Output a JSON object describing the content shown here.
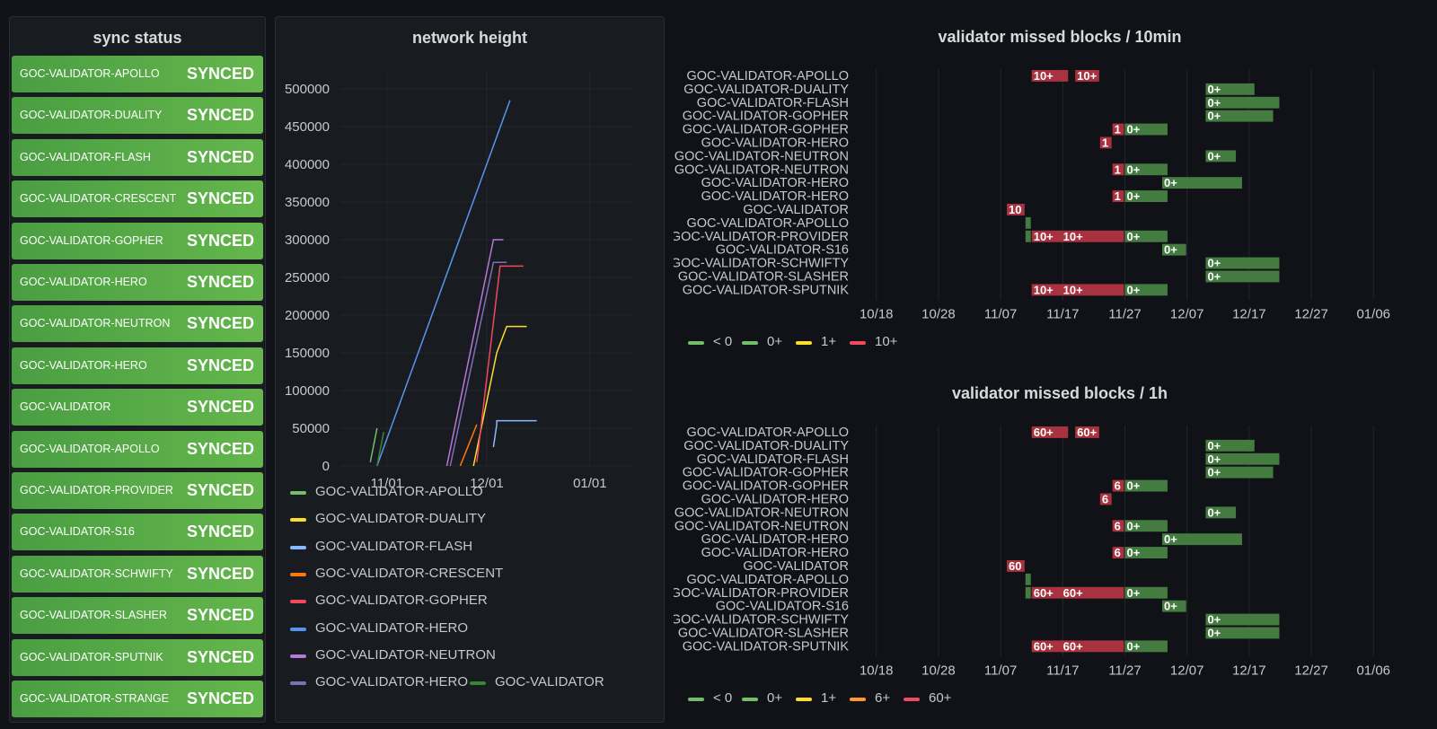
{
  "sync_panel": {
    "title": "sync status",
    "rows": [
      {
        "name": "GOC-VALIDATOR-APOLLO",
        "status": "SYNCED"
      },
      {
        "name": "GOC-VALIDATOR-DUALITY",
        "status": "SYNCED"
      },
      {
        "name": "GOC-VALIDATOR-FLASH",
        "status": "SYNCED"
      },
      {
        "name": "GOC-VALIDATOR-CRESCENT",
        "status": "SYNCED"
      },
      {
        "name": "GOC-VALIDATOR-GOPHER",
        "status": "SYNCED"
      },
      {
        "name": "GOC-VALIDATOR-HERO",
        "status": "SYNCED"
      },
      {
        "name": "GOC-VALIDATOR-NEUTRON",
        "status": "SYNCED"
      },
      {
        "name": "GOC-VALIDATOR-HERO",
        "status": "SYNCED"
      },
      {
        "name": "GOC-VALIDATOR",
        "status": "SYNCED"
      },
      {
        "name": "GOC-VALIDATOR-APOLLO",
        "status": "SYNCED"
      },
      {
        "name": "GOC-VALIDATOR-PROVIDER",
        "status": "SYNCED"
      },
      {
        "name": "GOC-VALIDATOR-S16",
        "status": "SYNCED"
      },
      {
        "name": "GOC-VALIDATOR-SCHWIFTY",
        "status": "SYNCED"
      },
      {
        "name": "GOC-VALIDATOR-SLASHER",
        "status": "SYNCED"
      },
      {
        "name": "GOC-VALIDATOR-SPUTNIK",
        "status": "SYNCED"
      },
      {
        "name": "GOC-VALIDATOR-STRANGE",
        "status": "SYNCED"
      }
    ]
  },
  "colors": {
    "synced": "#56a64b",
    "green": "#56a64b",
    "red": "#c4314b",
    "yellow": "#fade2a",
    "orange": "#ff780a",
    "blue": "#5794f2",
    "lightblue": "#8ab8ff",
    "purple": "#b877d9"
  },
  "chart_data": [
    {
      "type": "line",
      "title": "network height",
      "xlabel": "",
      "ylabel": "",
      "x_ticks": [
        "11/01",
        "12/01",
        "01/01"
      ],
      "y_ticks": [
        0,
        50000,
        100000,
        150000,
        200000,
        250000,
        300000,
        350000,
        400000,
        450000,
        500000
      ],
      "ylim": [
        0,
        500000
      ],
      "xlim": [
        "2022-10-18",
        "2023-01-14"
      ],
      "legend": "bottom",
      "series": [
        {
          "name": "GOC-VALIDATOR-APOLLO",
          "color": "#73bf69",
          "points": [
            [
              "2022-10-27",
              5000
            ],
            [
              "2022-10-29",
              50000
            ]
          ]
        },
        {
          "name": "GOC-VALIDATOR-DUALITY",
          "color": "#fade2a",
          "points": [
            [
              "2022-11-27",
              0
            ],
            [
              "2022-12-04",
              150000
            ],
            [
              "2022-12-07",
              185000
            ],
            [
              "2022-12-13",
              185000
            ]
          ]
        },
        {
          "name": "GOC-VALIDATOR-FLASH",
          "color": "#8ab8ff",
          "points": [
            [
              "2022-12-03",
              25000
            ],
            [
              "2022-12-04",
              55000
            ],
            [
              "2022-12-04",
              60000
            ],
            [
              "2022-12-16",
              60000
            ]
          ]
        },
        {
          "name": "GOC-VALIDATOR-CRESCENT",
          "color": "#ff780a",
          "points": [
            [
              "2022-11-23",
              0
            ],
            [
              "2022-11-28",
              55000
            ]
          ]
        },
        {
          "name": "GOC-VALIDATOR-GOPHER",
          "color": "#f2495c",
          "points": [
            [
              "2022-11-28",
              5000
            ],
            [
              "2022-12-05",
              265000
            ],
            [
              "2022-12-12",
              265000
            ]
          ]
        },
        {
          "name": "GOC-VALIDATOR-HERO",
          "color": "#5794f2",
          "points": [
            [
              "2022-10-29",
              0
            ],
            [
              "2022-12-08",
              485000
            ]
          ]
        },
        {
          "name": "GOC-VALIDATOR-NEUTRON",
          "color": "#b877d9",
          "points": [
            [
              "2022-11-19",
              0
            ],
            [
              "2022-12-03",
              300000
            ],
            [
              "2022-12-06",
              300000
            ]
          ]
        },
        {
          "name": "GOC-VALIDATOR-HERO",
          "color": "#806eb7",
          "points": [
            [
              "2022-11-20",
              0
            ],
            [
              "2022-12-03",
              270000
            ],
            [
              "2022-12-07",
              270000
            ]
          ]
        },
        {
          "name": "GOC-VALIDATOR",
          "color": "#37872d",
          "points": [
            [
              "2022-10-29",
              0
            ],
            [
              "2022-10-31",
              45000
            ]
          ]
        }
      ]
    },
    {
      "type": "bar",
      "title": "validator missed blocks / 10min",
      "xlabel": "",
      "ylabel": "",
      "x_ticks": [
        "10/18",
        "10/28",
        "11/07",
        "11/17",
        "11/27",
        "12/07",
        "12/17",
        "12/27",
        "01/06"
      ],
      "xlim": [
        "2022-10-15",
        "2023-01-09"
      ],
      "legend": "bottom-left",
      "legend_entries": [
        {
          "label": "< 0",
          "color": "#73bf69"
        },
        {
          "label": "0+",
          "color": "#73bf69"
        },
        {
          "label": "1+",
          "color": "#fade2a"
        },
        {
          "label": "10+",
          "color": "#f2495c"
        }
      ],
      "rows": [
        {
          "name": "GOC-VALIDATOR-APOLLO",
          "segments": [
            [
              "2022-11-12",
              "2022-11-18",
              "10+",
              "red"
            ],
            [
              "2022-11-19",
              "2022-11-23",
              "10+",
              "red"
            ]
          ]
        },
        {
          "name": "GOC-VALIDATOR-DUALITY",
          "segments": [
            [
              "2022-12-10",
              "2022-12-18",
              "0+",
              "green"
            ]
          ]
        },
        {
          "name": "GOC-VALIDATOR-FLASH",
          "segments": [
            [
              "2022-12-10",
              "2022-12-22",
              "0+",
              "green"
            ]
          ]
        },
        {
          "name": "GOC-VALIDATOR-GOPHER",
          "segments": [
            [
              "2022-12-10",
              "2022-12-21",
              "0+",
              "green"
            ]
          ]
        },
        {
          "name": "GOC-VALIDATOR-GOPHER",
          "segments": [
            [
              "2022-11-25",
              "2022-11-27",
              "1",
              "red"
            ],
            [
              "2022-11-27",
              "2022-12-04",
              "0+",
              "green"
            ]
          ]
        },
        {
          "name": "GOC-VALIDATOR-HERO",
          "segments": [
            [
              "2022-11-23",
              "2022-11-25",
              "1",
              "red"
            ]
          ]
        },
        {
          "name": "GOC-VALIDATOR-NEUTRON",
          "segments": [
            [
              "2022-12-10",
              "2022-12-15",
              "0+",
              "green"
            ]
          ]
        },
        {
          "name": "GOC-VALIDATOR-NEUTRON",
          "segments": [
            [
              "2022-11-25",
              "2022-11-27",
              "1",
              "red"
            ],
            [
              "2022-11-27",
              "2022-12-04",
              "0+",
              "green"
            ]
          ]
        },
        {
          "name": "GOC-VALIDATOR-HERO",
          "segments": [
            [
              "2022-12-03",
              "2022-12-16",
              "0+",
              "green"
            ]
          ]
        },
        {
          "name": "GOC-VALIDATOR-HERO",
          "segments": [
            [
              "2022-11-25",
              "2022-11-27",
              "1",
              "red"
            ],
            [
              "2022-11-27",
              "2022-12-04",
              "0+",
              "green"
            ]
          ]
        },
        {
          "name": "GOC-VALIDATOR",
          "segments": [
            [
              "2022-11-08",
              "2022-11-11",
              "10",
              "red"
            ]
          ]
        },
        {
          "name": "GOC-VALIDATOR-APOLLO",
          "segments": [
            [
              "2022-11-11",
              "2022-11-12",
              "",
              "green"
            ]
          ]
        },
        {
          "name": "GOC-VALIDATOR-PROVIDER",
          "segments": [
            [
              "2022-11-11",
              "2022-11-12",
              "",
              "green"
            ],
            [
              "2022-11-12",
              "2022-11-27",
              "10+   10+",
              "red"
            ],
            [
              "2022-11-27",
              "2022-12-04",
              "0+",
              "green"
            ]
          ]
        },
        {
          "name": "GOC-VALIDATOR-S16",
          "segments": [
            [
              "2022-12-03",
              "2022-12-07",
              "0+",
              "green"
            ]
          ]
        },
        {
          "name": "GOC-VALIDATOR-SCHWIFTY",
          "segments": [
            [
              "2022-12-10",
              "2022-12-22",
              "0+",
              "green"
            ]
          ]
        },
        {
          "name": "GOC-VALIDATOR-SLASHER",
          "segments": [
            [
              "2022-12-10",
              "2022-12-22",
              "0+",
              "green"
            ]
          ]
        },
        {
          "name": "GOC-VALIDATOR-SPUTNIK",
          "segments": [
            [
              "2022-11-12",
              "2022-11-27",
              "10+   10+",
              "red"
            ],
            [
              "2022-11-27",
              "2022-12-04",
              "0+",
              "green"
            ]
          ]
        }
      ]
    },
    {
      "type": "bar",
      "title": "validator missed blocks / 1h",
      "xlabel": "",
      "ylabel": "",
      "x_ticks": [
        "10/18",
        "10/28",
        "11/07",
        "11/17",
        "11/27",
        "12/07",
        "12/17",
        "12/27",
        "01/06"
      ],
      "xlim": [
        "2022-10-15",
        "2023-01-09"
      ],
      "legend": "bottom-left",
      "legend_entries": [
        {
          "label": "< 0",
          "color": "#73bf69"
        },
        {
          "label": "0+",
          "color": "#73bf69"
        },
        {
          "label": "1+",
          "color": "#fade2a"
        },
        {
          "label": "6+",
          "color": "#ff9830"
        },
        {
          "label": "60+",
          "color": "#f2495c"
        }
      ],
      "rows": [
        {
          "name": "GOC-VALIDATOR-APOLLO",
          "segments": [
            [
              "2022-11-12",
              "2022-11-18",
              "60+",
              "red"
            ],
            [
              "2022-11-19",
              "2022-11-23",
              "60+",
              "red"
            ]
          ]
        },
        {
          "name": "GOC-VALIDATOR-DUALITY",
          "segments": [
            [
              "2022-12-10",
              "2022-12-18",
              "0+",
              "green"
            ]
          ]
        },
        {
          "name": "GOC-VALIDATOR-FLASH",
          "segments": [
            [
              "2022-12-10",
              "2022-12-22",
              "0+",
              "green"
            ]
          ]
        },
        {
          "name": "GOC-VALIDATOR-GOPHER",
          "segments": [
            [
              "2022-12-10",
              "2022-12-21",
              "0+",
              "green"
            ]
          ]
        },
        {
          "name": "GOC-VALIDATOR-GOPHER",
          "segments": [
            [
              "2022-11-25",
              "2022-11-27",
              "6",
              "red"
            ],
            [
              "2022-11-27",
              "2022-12-04",
              "0+",
              "green"
            ]
          ]
        },
        {
          "name": "GOC-VALIDATOR-HERO",
          "segments": [
            [
              "2022-11-23",
              "2022-11-25",
              "6",
              "red"
            ]
          ]
        },
        {
          "name": "GOC-VALIDATOR-NEUTRON",
          "segments": [
            [
              "2022-12-10",
              "2022-12-15",
              "0+",
              "green"
            ]
          ]
        },
        {
          "name": "GOC-VALIDATOR-NEUTRON",
          "segments": [
            [
              "2022-11-25",
              "2022-11-27",
              "6",
              "red"
            ],
            [
              "2022-11-27",
              "2022-12-04",
              "0+",
              "green"
            ]
          ]
        },
        {
          "name": "GOC-VALIDATOR-HERO",
          "segments": [
            [
              "2022-12-03",
              "2022-12-16",
              "0+",
              "green"
            ]
          ]
        },
        {
          "name": "GOC-VALIDATOR-HERO",
          "segments": [
            [
              "2022-11-25",
              "2022-11-27",
              "6",
              "red"
            ],
            [
              "2022-11-27",
              "2022-12-04",
              "0+",
              "green"
            ]
          ]
        },
        {
          "name": "GOC-VALIDATOR",
          "segments": [
            [
              "2022-11-08",
              "2022-11-11",
              "60",
              "red"
            ]
          ]
        },
        {
          "name": "GOC-VALIDATOR-APOLLO",
          "segments": [
            [
              "2022-11-11",
              "2022-11-12",
              "",
              "green"
            ]
          ]
        },
        {
          "name": "GOC-VALIDATOR-PROVIDER",
          "segments": [
            [
              "2022-11-11",
              "2022-11-12",
              "",
              "green"
            ],
            [
              "2022-11-12",
              "2022-11-27",
              "60+   60+",
              "red"
            ],
            [
              "2022-11-27",
              "2022-12-04",
              "0+",
              "green"
            ]
          ]
        },
        {
          "name": "GOC-VALIDATOR-S16",
          "segments": [
            [
              "2022-12-03",
              "2022-12-07",
              "0+",
              "green"
            ]
          ]
        },
        {
          "name": "GOC-VALIDATOR-SCHWIFTY",
          "segments": [
            [
              "2022-12-10",
              "2022-12-22",
              "0+",
              "green"
            ]
          ]
        },
        {
          "name": "GOC-VALIDATOR-SLASHER",
          "segments": [
            [
              "2022-12-10",
              "2022-12-22",
              "0+",
              "green"
            ]
          ]
        },
        {
          "name": "GOC-VALIDATOR-SPUTNIK",
          "segments": [
            [
              "2022-11-12",
              "2022-11-27",
              "60+   60+",
              "red"
            ],
            [
              "2022-11-27",
              "2022-12-04",
              "0+",
              "green"
            ]
          ]
        }
      ]
    }
  ]
}
